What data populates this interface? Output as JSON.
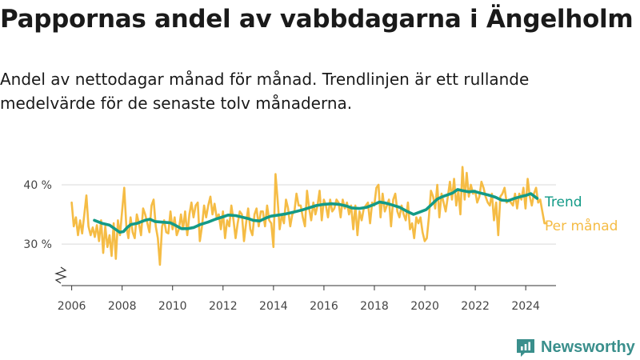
{
  "header": {
    "title": "Pappornas andel av vabbdagarna i Ängelholm",
    "subtitle": "Andel av nettodagar månad för månad. Trendlinjen är ett rullande medelvärde för de senaste tolv månaderna."
  },
  "brand": {
    "name": "Newsworthy",
    "icon": "newsworthy-logo-icon",
    "color": "#3a8f8c"
  },
  "chart_data": {
    "type": "line",
    "xlim": [
      2005.6,
      2025.2
    ],
    "ylim": [
      23,
      43.5
    ],
    "y_ticks": [
      {
        "value": 30,
        "label": "30 %"
      },
      {
        "value": 40,
        "label": "40 %"
      }
    ],
    "x_ticks": [
      2006,
      2008,
      2010,
      2012,
      2014,
      2016,
      2018,
      2020,
      2022,
      2024
    ],
    "grid": true,
    "y_axis_break": true,
    "legend_placement": "right, at line ends",
    "series": [
      {
        "name": "Per månad",
        "color": "#f5bc45",
        "x_start": 2006.0,
        "x_step": 0.0833,
        "values": [
          37.0,
          33.0,
          34.5,
          31.5,
          34.0,
          31.8,
          35.0,
          38.2,
          33.0,
          31.5,
          32.8,
          31.2,
          33.2,
          30.5,
          34.0,
          28.5,
          33.0,
          29.5,
          31.5,
          28.0,
          33.5,
          27.5,
          34.0,
          31.5,
          35.5,
          39.5,
          33.0,
          31.0,
          34.5,
          32.0,
          31.0,
          35.0,
          33.5,
          31.5,
          36.0,
          35.0,
          33.5,
          32.0,
          36.5,
          37.5,
          33.0,
          31.0,
          26.5,
          33.0,
          34.0,
          32.0,
          31.8,
          35.5,
          32.5,
          34.5,
          31.5,
          32.5,
          35.0,
          32.5,
          35.5,
          31.5,
          35.0,
          37.0,
          34.5,
          36.5,
          37.0,
          30.5,
          33.0,
          36.5,
          34.5,
          36.5,
          38.0,
          35.0,
          36.8,
          34.5,
          35.0,
          32.5,
          35.5,
          31.0,
          34.0,
          33.0,
          36.5,
          34.0,
          31.0,
          33.5,
          35.5,
          35.0,
          30.5,
          33.5,
          36.0,
          32.5,
          31.5,
          35.0,
          36.0,
          33.0,
          35.5,
          35.5,
          33.0,
          36.5,
          34.0,
          33.5,
          29.5,
          41.8,
          37.5,
          32.5,
          35.0,
          33.5,
          37.5,
          36.0,
          33.0,
          35.0,
          35.5,
          38.5,
          36.5,
          36.5,
          34.5,
          33.0,
          39.0,
          36.0,
          34.0,
          37.0,
          35.0,
          36.5,
          39.0,
          34.0,
          37.5,
          36.5,
          34.5,
          37.5,
          35.5,
          36.0,
          37.5,
          37.0,
          34.5,
          37.5,
          36.0,
          37.0,
          35.0,
          36.5,
          32.5,
          36.5,
          31.5,
          35.5,
          34.0,
          36.0,
          36.5,
          37.0,
          33.5,
          37.0,
          36.5,
          39.5,
          40.0,
          34.5,
          38.5,
          35.5,
          36.5,
          37.5,
          33.0,
          37.5,
          38.5,
          35.5,
          34.5,
          36.5,
          35.0,
          34.0,
          37.0,
          32.5,
          33.5,
          31.0,
          34.5,
          33.5,
          34.5,
          32.0,
          30.5,
          31.0,
          34.5,
          39.0,
          38.0,
          36.0,
          40.0,
          34.5,
          38.5,
          37.0,
          35.5,
          38.0,
          40.5,
          37.5,
          41.0,
          36.5,
          39.0,
          35.0,
          43.0,
          37.5,
          42.0,
          38.0,
          40.0,
          38.5,
          39.0,
          37.0,
          38.0,
          40.5,
          39.5,
          38.0,
          37.0,
          36.5,
          38.5,
          34.0,
          37.0,
          31.5,
          38.0,
          38.5,
          39.5,
          37.0,
          37.5,
          37.0,
          36.5,
          38.5,
          36.0,
          38.5,
          37.5,
          39.5,
          36.0,
          41.0,
          38.0,
          36.5,
          38.5,
          39.5,
          37.0,
          37.5,
          35.5,
          33.5,
          33.5
        ]
      },
      {
        "name": "Trend",
        "color": "#139a87",
        "points": [
          [
            2006.9,
            34.0
          ],
          [
            2007.2,
            33.5
          ],
          [
            2007.5,
            33.2
          ],
          [
            2007.7,
            32.6
          ],
          [
            2007.9,
            32.0
          ],
          [
            2008.05,
            32.1
          ],
          [
            2008.2,
            32.8
          ],
          [
            2008.35,
            33.3
          ],
          [
            2008.6,
            33.5
          ],
          [
            2008.9,
            34.0
          ],
          [
            2009.1,
            34.2
          ],
          [
            2009.3,
            33.8
          ],
          [
            2009.6,
            33.7
          ],
          [
            2009.9,
            33.6
          ],
          [
            2010.1,
            33.2
          ],
          [
            2010.35,
            32.6
          ],
          [
            2010.6,
            32.6
          ],
          [
            2010.85,
            32.8
          ],
          [
            2011.1,
            33.3
          ],
          [
            2011.4,
            33.7
          ],
          [
            2011.7,
            34.2
          ],
          [
            2012.0,
            34.6
          ],
          [
            2012.2,
            34.9
          ],
          [
            2012.5,
            34.8
          ],
          [
            2012.8,
            34.5
          ],
          [
            2013.0,
            34.3
          ],
          [
            2013.2,
            34.0
          ],
          [
            2013.45,
            33.9
          ],
          [
            2013.7,
            34.4
          ],
          [
            2013.9,
            34.7
          ],
          [
            2014.2,
            34.9
          ],
          [
            2014.5,
            35.1
          ],
          [
            2014.8,
            35.4
          ],
          [
            2015.1,
            35.7
          ],
          [
            2015.4,
            36.1
          ],
          [
            2015.7,
            36.5
          ],
          [
            2016.0,
            36.7
          ],
          [
            2016.3,
            36.8
          ],
          [
            2016.6,
            36.7
          ],
          [
            2016.9,
            36.4
          ],
          [
            2017.1,
            36.1
          ],
          [
            2017.4,
            36.0
          ],
          [
            2017.7,
            36.2
          ],
          [
            2018.0,
            36.7
          ],
          [
            2018.2,
            37.1
          ],
          [
            2018.45,
            36.9
          ],
          [
            2018.7,
            36.6
          ],
          [
            2019.0,
            36.2
          ],
          [
            2019.3,
            35.5
          ],
          [
            2019.55,
            35.0
          ],
          [
            2019.8,
            35.4
          ],
          [
            2020.05,
            35.8
          ],
          [
            2020.3,
            36.8
          ],
          [
            2020.5,
            37.6
          ],
          [
            2020.7,
            38.0
          ],
          [
            2020.9,
            38.3
          ],
          [
            2021.1,
            38.6
          ],
          [
            2021.3,
            39.2
          ],
          [
            2021.5,
            39.0
          ],
          [
            2021.75,
            38.8
          ],
          [
            2021.95,
            38.9
          ],
          [
            2022.2,
            38.6
          ],
          [
            2022.5,
            38.3
          ],
          [
            2022.8,
            37.9
          ],
          [
            2023.05,
            37.4
          ],
          [
            2023.3,
            37.3
          ],
          [
            2023.55,
            37.7
          ],
          [
            2023.8,
            38.0
          ],
          [
            2024.0,
            38.2
          ],
          [
            2024.2,
            38.5
          ],
          [
            2024.45,
            37.7
          ]
        ]
      }
    ]
  }
}
